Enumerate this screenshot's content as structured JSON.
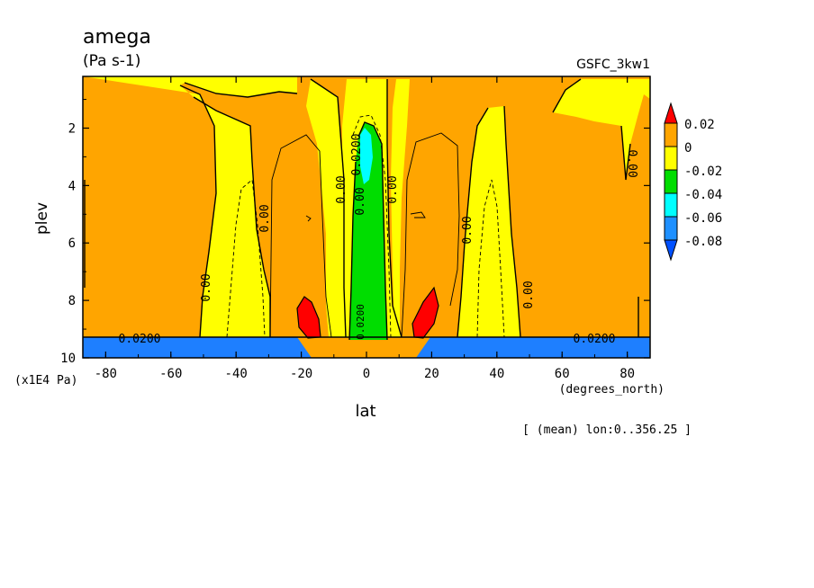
{
  "chart_data": {
    "type": "heatmap",
    "title": "amega",
    "units": "(Pa s-1)",
    "dataset": "GSFC_3kw1",
    "xlabel": "lat",
    "x_units": "(degrees_north)",
    "ylabel": "plev",
    "y_units": "(x1E4 Pa)",
    "footer": "[ (mean) lon:0..356.25 ]",
    "xlim": [
      -87,
      87
    ],
    "ylim": [
      10,
      0.2
    ],
    "x_ticks": [
      "-80",
      "-60",
      "-40",
      "-20",
      "0",
      "20",
      "40",
      "60",
      "80"
    ],
    "y_ticks": [
      "2",
      "4",
      "6",
      "8",
      "10"
    ],
    "contour_labels": [
      "0.00",
      "0.00",
      "0.00",
      "0.00",
      "0.00",
      "0.00",
      "0.00",
      "0.00",
      "0.0200",
      "0.0200",
      "0.0200",
      "0.0200"
    ],
    "colorbar": {
      "levels": [
        "0.02",
        "0",
        "-0.02",
        "-0.04",
        "-0.06",
        "-0.08"
      ],
      "colors": [
        "#ff0000",
        "#ffa500",
        "#ffff00",
        "#00dd00",
        "#00ffff",
        "#1e90ff",
        "#0050ff"
      ]
    },
    "regions": [
      {
        "name": "background",
        "value": "0 to 0.02",
        "color": "#ffa500"
      },
      {
        "name": "upper-left-yellow",
        "value": "-0.02 to 0",
        "color": "#ffff00"
      },
      {
        "name": "mid-left-yellow",
        "value": "-0.02 to 0",
        "color": "#ffff00"
      },
      {
        "name": "mid-right-yellow",
        "value": "-0.02 to 0",
        "color": "#ffff00"
      },
      {
        "name": "equator-yellow",
        "value": "-0.02 to 0",
        "color": "#ffff00"
      },
      {
        "name": "top-right-yellow",
        "value": "-0.02 to 0",
        "color": "#ffff00"
      },
      {
        "name": "equator-green",
        "value": "-0.04 to -0.02",
        "color": "#00dd00"
      },
      {
        "name": "equator-cyan",
        "value": "-0.06 to -0.04",
        "color": "#00ffff"
      },
      {
        "name": "left-red",
        "value": "> 0.02",
        "color": "#ff0000"
      },
      {
        "name": "right-red",
        "value": "> 0.02",
        "color": "#ff0000"
      },
      {
        "name": "left-surface-blue",
        "value": "< -0.08",
        "color": "#1e7fff"
      },
      {
        "name": "right-surface-blue",
        "value": "< -0.08",
        "color": "#1e7fff"
      }
    ]
  }
}
